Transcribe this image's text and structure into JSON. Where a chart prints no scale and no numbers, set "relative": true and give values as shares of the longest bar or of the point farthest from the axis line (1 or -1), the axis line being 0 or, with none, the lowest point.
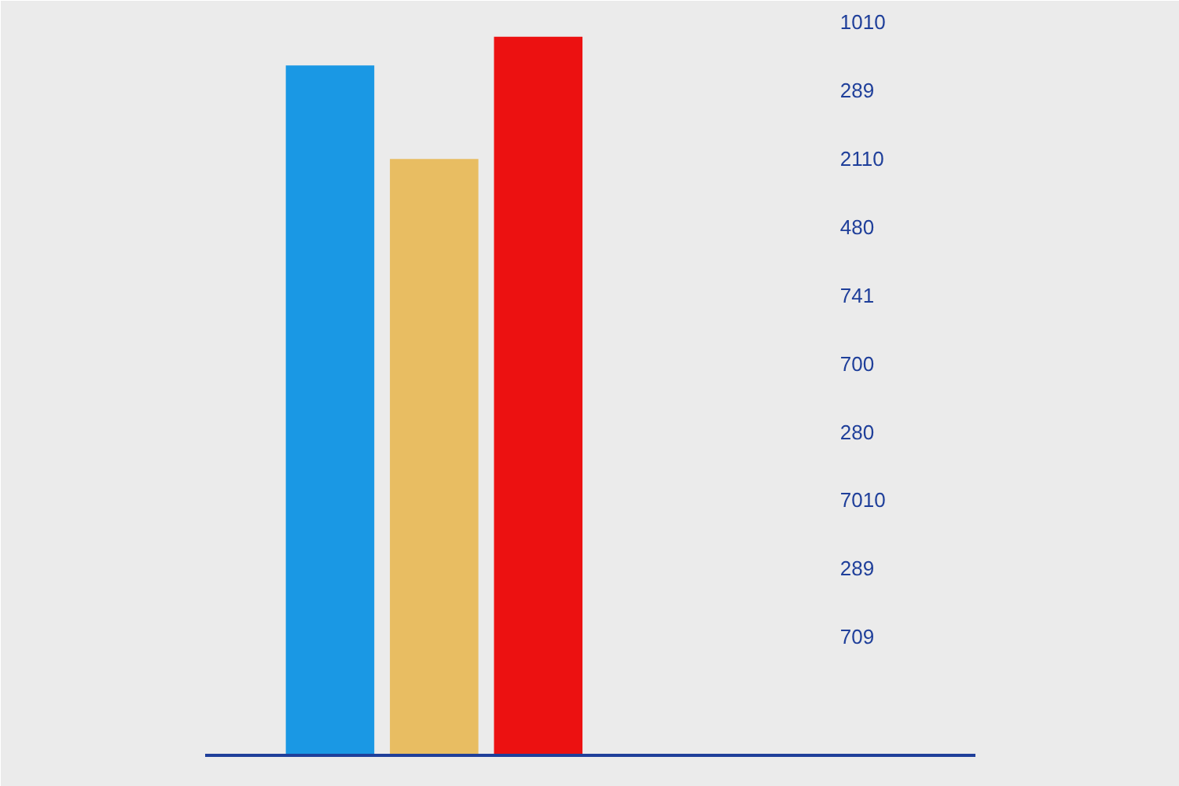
{
  "chart_data": {
    "type": "bar",
    "relative": true,
    "categories": [
      null,
      null,
      null
    ],
    "values": [
      0.96,
      0.83,
      1
    ],
    "colors": [
      "#1a98e4",
      "#e8bd62",
      "#ec1111"
    ],
    "annotations": [
      "1010",
      "289",
      "2110",
      "480",
      "741",
      "700",
      "280",
      "7010",
      "289",
      "709"
    ]
  }
}
